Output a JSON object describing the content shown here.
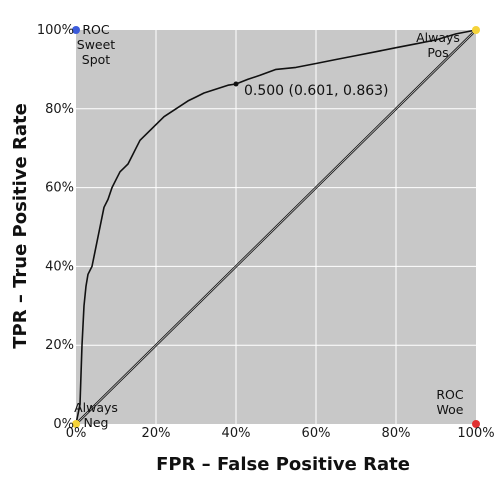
{
  "chart_data": {
    "type": "line",
    "xlabel": "FPR – False Positive Rate",
    "ylabel": "TPR – True Positive Rate",
    "xlim": [
      0,
      1
    ],
    "ylim": [
      0,
      1
    ],
    "x_ticks": [
      "0%",
      "20%",
      "40%",
      "60%",
      "80%",
      "100%"
    ],
    "y_ticks": [
      "0%",
      "20%",
      "40%",
      "60%",
      "80%",
      "100%"
    ],
    "grid": true,
    "background": "#c8c8c8",
    "series": [
      {
        "role": "roc-curve",
        "x": [
          0.0,
          0.01,
          0.015,
          0.02,
          0.025,
          0.03,
          0.04,
          0.05,
          0.06,
          0.07,
          0.08,
          0.09,
          0.1,
          0.11,
          0.12,
          0.13,
          0.14,
          0.15,
          0.16,
          0.18,
          0.2,
          0.22,
          0.25,
          0.28,
          0.3,
          0.32,
          0.35,
          0.38,
          0.4,
          0.43,
          0.46,
          0.5,
          0.55,
          0.6,
          0.65,
          0.7,
          0.75,
          0.8,
          0.85,
          0.9,
          0.95,
          1.0
        ],
        "y": [
          0.0,
          0.05,
          0.2,
          0.3,
          0.35,
          0.38,
          0.4,
          0.45,
          0.5,
          0.55,
          0.57,
          0.6,
          0.62,
          0.64,
          0.65,
          0.66,
          0.68,
          0.7,
          0.72,
          0.74,
          0.76,
          0.78,
          0.8,
          0.82,
          0.83,
          0.84,
          0.85,
          0.86,
          0.863,
          0.875,
          0.885,
          0.9,
          0.905,
          0.915,
          0.925,
          0.935,
          0.945,
          0.955,
          0.965,
          0.975,
          0.99,
          1.0
        ]
      },
      {
        "role": "diagonal",
        "x": [
          0,
          1
        ],
        "y": [
          0,
          1
        ]
      }
    ],
    "points": [
      {
        "x": 0.0,
        "y": 1.0,
        "color": "#3b5bdb",
        "label": [
          "ROC",
          "Sweet",
          "Spot"
        ]
      },
      {
        "x": 1.0,
        "y": 0.0,
        "color": "#e03131",
        "label": [
          "ROC",
          "Woe"
        ]
      },
      {
        "x": 0.0,
        "y": 0.0,
        "color": "#f5d33a",
        "label": [
          "Always",
          "Neg"
        ]
      },
      {
        "x": 1.0,
        "y": 1.0,
        "color": "#f5d33a",
        "label": [
          "Always",
          "Pos"
        ]
      }
    ],
    "threshold_marker": {
      "x": 0.4,
      "y": 0.863,
      "label": "0.500 (0.601, 0.863)"
    }
  }
}
